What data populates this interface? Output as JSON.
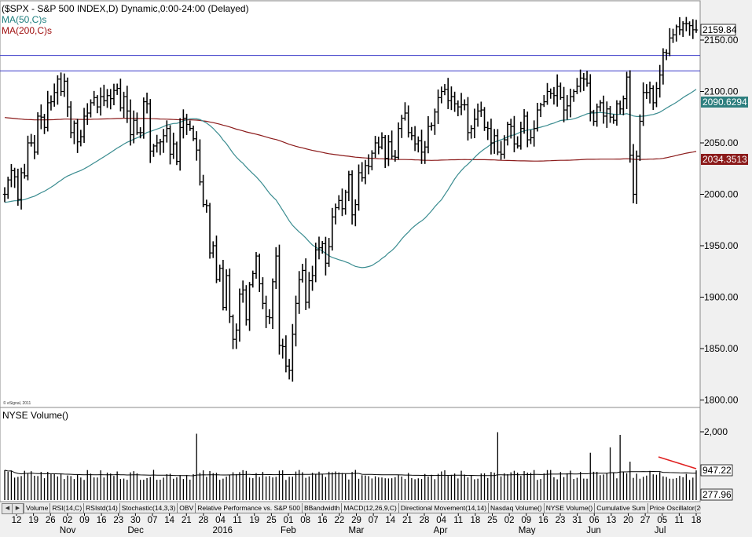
{
  "header": {
    "title": "($SPX - S&P 500 INDEX,D) Dynamic,0:00-24:00 (Delayed)",
    "ma50_label": "MA(50,C)s",
    "ma200_label": "MA(200,C)s"
  },
  "copyright": "© eSignal, 2011",
  "lower_panel": {
    "title": "NYSE Volume()"
  },
  "tabs": [
    "Volume",
    "RSI(14,C)",
    "RSIstd(14)",
    "Stochastic(14,3,3)",
    "OBV",
    "Relative Performance vs. S&P 500",
    "BBandwidth",
    "MACD(12,26,9,C)",
    "Directional Movement(14,14)",
    "Nasdaq Volume()",
    "NYSE Volume()",
    "Cumulative Sum",
    "Price Oscillator(20"
  ],
  "colors": {
    "price_bars": "#000000",
    "ma50": "#3a8c90",
    "ma200": "#8b1a1a",
    "horizontal_lines": "#3a3ac8",
    "annotation": "#e02020",
    "ma50_label": "#1f7f7f",
    "ma200_label": "#a01010"
  },
  "chart_data": [
    {
      "type": "ohlc",
      "title": "($SPX - S&P 500 INDEX,D) Dynamic,0:00-24:00 (Delayed)",
      "ylim": [
        1790,
        2175
      ],
      "yticks": [
        "2150.00",
        "2100.00",
        "2050.00",
        "2000.00",
        "1950.00",
        "1900.00",
        "1850.00",
        "1800.00"
      ],
      "ytick_values": [
        2150,
        2100,
        2050,
        2000,
        1950,
        1900,
        1850,
        1800
      ],
      "last_price_label": "2159.84",
      "last_price": 2159.84,
      "ma50_last_label": "2090.6294",
      "ma50_last": 2090.63,
      "ma200_last_label": "2034.3513",
      "ma200_last": 2034.35,
      "horizontal_lines": [
        2135,
        2120
      ],
      "grid": false,
      "series_closes": [
        2000,
        2014,
        2023,
        2017,
        1995,
        2021,
        2018,
        2050,
        2050,
        2041,
        2076,
        2075,
        2065,
        2089,
        2090,
        2099,
        2112,
        2100,
        2110,
        2085,
        2060,
        2069,
        2051,
        2056,
        2076,
        2079,
        2089,
        2094,
        2085,
        2095,
        2091,
        2096,
        2093,
        2101,
        2103,
        2084,
        2095,
        2081,
        2058,
        2072,
        2060,
        2060,
        2090,
        2088,
        2042,
        2047,
        2050,
        2051,
        2057,
        2064,
        2039,
        2049,
        2032,
        2065,
        2074,
        2068,
        2064,
        2054,
        2043,
        2012,
        1990,
        1989,
        1943,
        1950,
        1917,
        1928,
        1890,
        1921,
        1881,
        1859,
        1868,
        1903,
        1907,
        1878,
        1912,
        1923,
        1940,
        1913,
        1894,
        1881,
        1880,
        1915,
        1940,
        1853,
        1852,
        1833,
        1829,
        1864,
        1894,
        1917,
        1926,
        1895,
        1916,
        1921,
        1946,
        1948,
        1952,
        1933,
        1949,
        1978,
        1987,
        1994,
        1986,
        2002,
        2019,
        1980,
        1990,
        2021,
        2016,
        2028,
        2027,
        2040,
        2050,
        2046,
        2055,
        2035,
        2051,
        2037,
        2036,
        2064,
        2074,
        2079,
        2060,
        2057,
        2049,
        2052,
        2041,
        2046,
        2066,
        2067,
        2080,
        2094,
        2100,
        2102,
        2091,
        2095,
        2088,
        2085,
        2087,
        2087,
        2060,
        2064,
        2073,
        2081,
        2082,
        2065,
        2064,
        2050,
        2057,
        2041,
        2039,
        2053,
        2068,
        2066,
        2049,
        2047,
        2064,
        2076,
        2053,
        2055,
        2064,
        2082,
        2087,
        2090,
        2100,
        2098,
        2096,
        2105,
        2094,
        2082,
        2086,
        2095,
        2100,
        2105,
        2113,
        2112,
        2108,
        2080,
        2071,
        2085,
        2089,
        2076,
        2083,
        2075,
        2072,
        2088,
        2083,
        2093,
        2114,
        2038,
        2000,
        2037,
        2071,
        2099,
        2099,
        2103,
        2089,
        2103,
        2116,
        2138,
        2137,
        2152,
        2155,
        2163,
        2160,
        2166,
        2166,
        2164,
        2160,
        2159.84
      ]
    },
    {
      "type": "bar",
      "title": "NYSE Volume()",
      "yticks": [
        "2,000"
      ],
      "ytick_values": [
        2000
      ],
      "last_value_label": "947.22",
      "last_value": 947.22,
      "low_label": "277.96",
      "low_value": 277.96,
      "ylim": [
        240,
        2200
      ],
      "x_labels": [
        "12",
        "19",
        "26",
        "02",
        "09",
        "16",
        "23",
        "30",
        "07",
        "14",
        "21",
        "28",
        "04",
        "11",
        "19",
        "25",
        "01",
        "08",
        "16",
        "22",
        "29",
        "07",
        "14",
        "21",
        "28",
        "04",
        "11",
        "18",
        "25",
        "02",
        "09",
        "16",
        "23",
        "31",
        "06",
        "13",
        "20",
        "27",
        "05",
        "11",
        "18"
      ],
      "month_labels": [
        "Nov",
        "Dec",
        "2016",
        "Feb",
        "Mar",
        "Apr",
        "May",
        "Jun",
        "Jul"
      ]
    }
  ]
}
